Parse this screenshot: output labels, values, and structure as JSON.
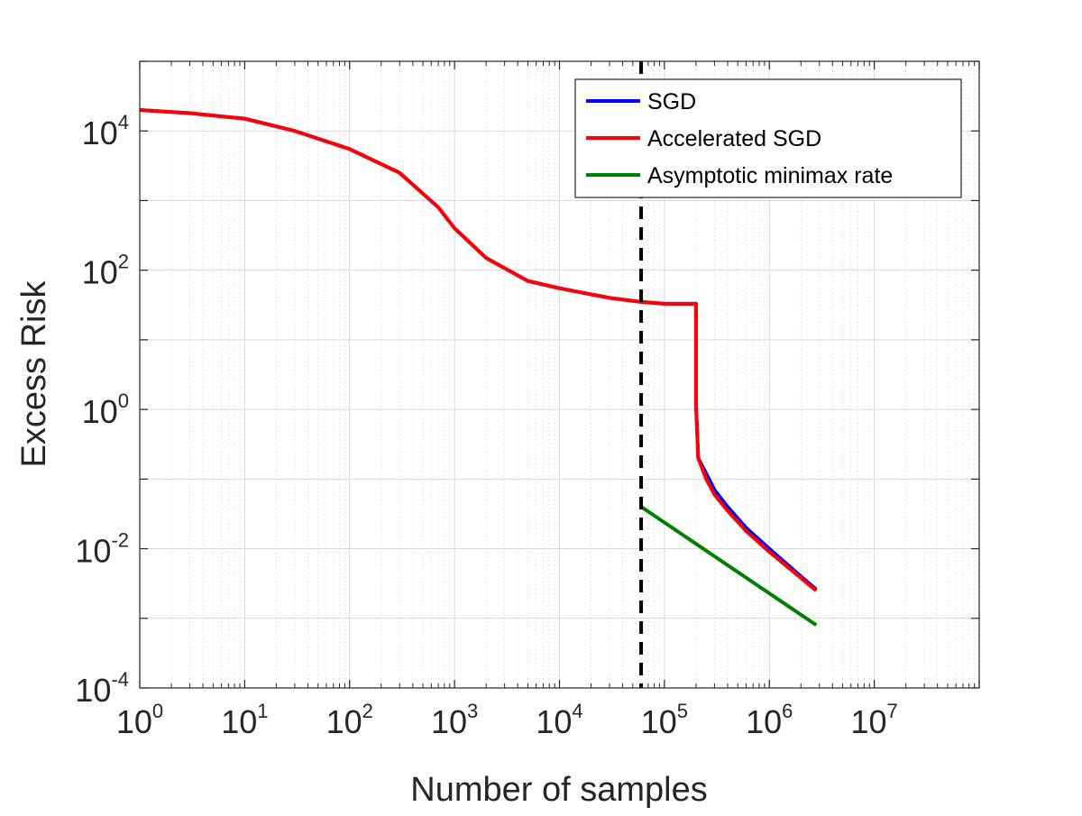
{
  "chart_data": {
    "type": "line",
    "title": "",
    "xlabel": "Number of samples",
    "ylabel": "Excess Risk",
    "xscale": "log",
    "yscale": "log",
    "xlim": [
      1,
      100000000
    ],
    "ylim": [
      0.0001,
      100000
    ],
    "grid": true,
    "x_ticks": [
      {
        "base": "10",
        "exp": "0"
      },
      {
        "base": "10",
        "exp": "1"
      },
      {
        "base": "10",
        "exp": "2"
      },
      {
        "base": "10",
        "exp": "3"
      },
      {
        "base": "10",
        "exp": "4"
      },
      {
        "base": "10",
        "exp": "5"
      },
      {
        "base": "10",
        "exp": "6"
      },
      {
        "base": "10",
        "exp": "7"
      }
    ],
    "y_ticks": [
      {
        "base": "10",
        "exp": "-4"
      },
      {
        "base": "10",
        "exp": "-2"
      },
      {
        "base": "10",
        "exp": "0"
      },
      {
        "base": "10",
        "exp": "2"
      },
      {
        "base": "10",
        "exp": "4"
      }
    ],
    "legend_position": "top-right",
    "series": [
      {
        "name": "SGD",
        "color": "#0000ff",
        "x": [
          1,
          3,
          10,
          30,
          100,
          300,
          700,
          1000,
          2000,
          5000,
          10000,
          30000,
          60000,
          100000,
          200000,
          200000,
          210000,
          250000,
          300000,
          400000,
          600000,
          1000000,
          2000000,
          2800000
        ],
        "y": [
          20000,
          18000,
          15000,
          10000,
          5500,
          2500,
          800,
          400,
          150,
          70,
          55,
          40,
          35,
          33,
          33,
          1.2,
          0.2,
          0.12,
          0.07,
          0.04,
          0.02,
          0.01,
          0.004,
          0.0026
        ]
      },
      {
        "name": "Accelerated SGD",
        "color": "#ff0000",
        "x": [
          1,
          3,
          10,
          30,
          100,
          300,
          700,
          1000,
          2000,
          5000,
          10000,
          30000,
          60000,
          100000,
          200000,
          200000,
          210000,
          250000,
          300000,
          400000,
          600000,
          1000000,
          2000000,
          2800000
        ],
        "y": [
          20000,
          18000,
          15000,
          10000,
          5500,
          2500,
          800,
          400,
          150,
          70,
          55,
          40,
          35,
          33,
          33,
          1.2,
          0.2,
          0.1,
          0.06,
          0.035,
          0.018,
          0.009,
          0.0038,
          0.0025
        ]
      },
      {
        "name": "Asymptotic minimax rate",
        "color": "#008000",
        "x": [
          60000,
          2800000
        ],
        "y": [
          0.04,
          0.0008
        ]
      }
    ],
    "annotations": [
      {
        "type": "vertical-dashed-line",
        "x": 60000,
        "color": "#000000"
      }
    ]
  }
}
